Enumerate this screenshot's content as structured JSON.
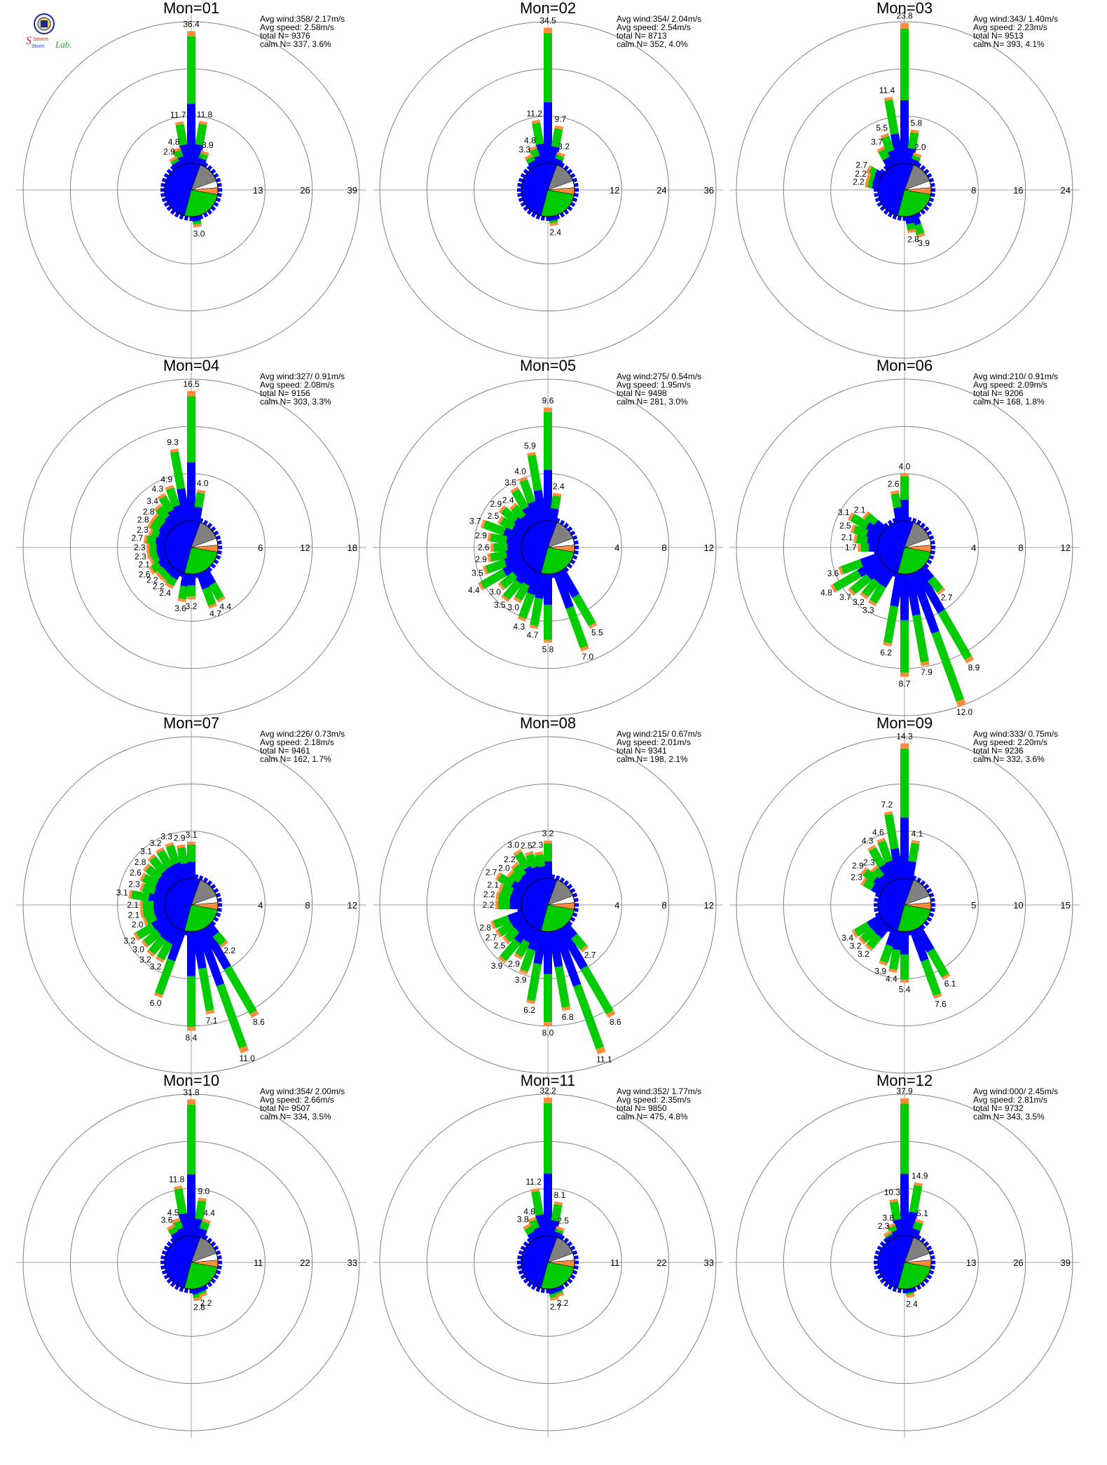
{
  "logo": {
    "text_top": "Severe",
    "text_bottom": "Storm",
    "text_lab": "Lab."
  },
  "colors": {
    "speed_low": "#0000ff",
    "speed_mid": "#00cc00",
    "speed_high": "#ff8c3c",
    "speed_max": "#ff0000",
    "calm": "#808080",
    "grid": "#808080",
    "axis": "#a0a0a0"
  },
  "chart_data": [
    {
      "type": "windrose",
      "title": "Mon=01",
      "avg_wind": "Avg wind:358/ 2.17m/s",
      "avg_speed": "Avg speed: 2.58m/s",
      "total": "total N=      9376",
      "calm": "calm N=    337,   3.6%",
      "rings": [
        13,
        26,
        39
      ],
      "petals": [
        {
          "dir": 0,
          "value": 36.4
        },
        {
          "dir": 350,
          "value": 11.7
        },
        {
          "dir": 10,
          "value": 11.8
        },
        {
          "dir": 340,
          "value": 4.8
        },
        {
          "dir": 20,
          "value": 3.9
        },
        {
          "dir": 330,
          "value": 2.9
        },
        {
          "dir": 170,
          "value": 3.0
        }
      ]
    },
    {
      "type": "windrose",
      "title": "Mon=02",
      "avg_wind": "Avg wind:354/ 2.04m/s",
      "avg_speed": "Avg speed: 2.54m/s",
      "total": "total N=      8713",
      "calm": "calm N=    352,   4.0%",
      "rings": [
        12,
        24,
        36
      ],
      "petals": [
        {
          "dir": 0,
          "value": 34.5
        },
        {
          "dir": 350,
          "value": 11.2
        },
        {
          "dir": 10,
          "value": 9.7
        },
        {
          "dir": 340,
          "value": 4.8
        },
        {
          "dir": 330,
          "value": 3.3
        },
        {
          "dir": 20,
          "value": 3.2
        },
        {
          "dir": 170,
          "value": 2.4
        }
      ]
    },
    {
      "type": "windrose",
      "title": "Mon=03",
      "avg_wind": "Avg wind:343/ 1.40m/s",
      "avg_speed": "Avg speed: 2.23m/s",
      "total": "total N=      9513",
      "calm": "calm N=    393,   4.1%",
      "rings": [
        8,
        16,
        24
      ],
      "petals": [
        {
          "dir": 0,
          "value": 23.8
        },
        {
          "dir": 350,
          "value": 11.4
        },
        {
          "dir": 10,
          "value": 5.8
        },
        {
          "dir": 340,
          "value": 5.5
        },
        {
          "dir": 330,
          "value": 3.7
        },
        {
          "dir": 20,
          "value": 2.0
        },
        {
          "dir": 300,
          "value": 2.7
        },
        {
          "dir": 290,
          "value": 2.2
        },
        {
          "dir": 280,
          "value": 2.2
        },
        {
          "dir": 160,
          "value": 3.9
        },
        {
          "dir": 170,
          "value": 2.8
        }
      ]
    },
    {
      "type": "windrose",
      "title": "Mon=04",
      "avg_wind": "Avg wind:327/ 0.91m/s",
      "avg_speed": "Avg speed: 2.08m/s",
      "total": "total N=      9156",
      "calm": "calm N=    303,   3.3%",
      "rings": [
        6,
        12,
        18
      ],
      "petals": [
        {
          "dir": 0,
          "value": 16.5
        },
        {
          "dir": 350,
          "value": 9.3
        },
        {
          "dir": 10,
          "value": 4.0
        },
        {
          "dir": 340,
          "value": 4.9
        },
        {
          "dir": 330,
          "value": 4.3
        },
        {
          "dir": 320,
          "value": 3.4
        },
        {
          "dir": 310,
          "value": 2.8
        },
        {
          "dir": 300,
          "value": 2.8
        },
        {
          "dir": 290,
          "value": 2.3
        },
        {
          "dir": 280,
          "value": 2.7
        },
        {
          "dir": 270,
          "value": 2.3
        },
        {
          "dir": 260,
          "value": 2.3
        },
        {
          "dir": 250,
          "value": 2.1
        },
        {
          "dir": 240,
          "value": 2.6
        },
        {
          "dir": 230,
          "value": 2.2
        },
        {
          "dir": 220,
          "value": 2.2
        },
        {
          "dir": 210,
          "value": 2.4
        },
        {
          "dir": 190,
          "value": 3.6
        },
        {
          "dir": 180,
          "value": 3.2
        },
        {
          "dir": 160,
          "value": 4.7
        },
        {
          "dir": 150,
          "value": 4.4
        }
      ]
    },
    {
      "type": "windrose",
      "title": "Mon=05",
      "avg_wind": "Avg wind:275/ 0.54m/s",
      "avg_speed": "Avg speed: 1.95m/s",
      "total": "total N=      9498",
      "calm": "calm N=    281,   3.0%",
      "rings": [
        4,
        8,
        12
      ],
      "petals": [
        {
          "dir": 0,
          "value": 9.6
        },
        {
          "dir": 350,
          "value": 5.9
        },
        {
          "dir": 340,
          "value": 4.0
        },
        {
          "dir": 330,
          "value": 3.5
        },
        {
          "dir": 10,
          "value": 2.4
        },
        {
          "dir": 320,
          "value": 2.4
        },
        {
          "dir": 310,
          "value": 2.9
        },
        {
          "dir": 300,
          "value": 2.5
        },
        {
          "dir": 290,
          "value": 3.7
        },
        {
          "dir": 280,
          "value": 2.9
        },
        {
          "dir": 270,
          "value": 2.6
        },
        {
          "dir": 260,
          "value": 2.9
        },
        {
          "dir": 250,
          "value": 3.5
        },
        {
          "dir": 240,
          "value": 4.4
        },
        {
          "dir": 230,
          "value": 3.0
        },
        {
          "dir": 220,
          "value": 3.5
        },
        {
          "dir": 210,
          "value": 3.0
        },
        {
          "dir": 200,
          "value": 4.3
        },
        {
          "dir": 190,
          "value": 4.7
        },
        {
          "dir": 180,
          "value": 5.8
        },
        {
          "dir": 160,
          "value": 7.0
        },
        {
          "dir": 150,
          "value": 5.5
        }
      ]
    },
    {
      "type": "windrose",
      "title": "Mon=06",
      "avg_wind": "Avg wind:210/ 0.91m/s",
      "avg_speed": "Avg speed: 2.09m/s",
      "total": "total N=      9206",
      "calm": "calm N=    168,   1.8%",
      "rings": [
        4,
        8,
        12
      ],
      "petals": [
        {
          "dir": 0,
          "value": 4.0
        },
        {
          "dir": 350,
          "value": 2.6
        },
        {
          "dir": 310,
          "value": 2.1
        },
        {
          "dir": 300,
          "value": 3.1
        },
        {
          "dir": 290,
          "value": 2.5
        },
        {
          "dir": 280,
          "value": 2.1
        },
        {
          "dir": 270,
          "value": 1.7
        },
        {
          "dir": 250,
          "value": 3.6
        },
        {
          "dir": 240,
          "value": 4.8
        },
        {
          "dir": 230,
          "value": 3.7
        },
        {
          "dir": 220,
          "value": 3.2
        },
        {
          "dir": 210,
          "value": 3.3
        },
        {
          "dir": 190,
          "value": 6.2
        },
        {
          "dir": 180,
          "value": 8.7
        },
        {
          "dir": 170,
          "value": 7.9
        },
        {
          "dir": 160,
          "value": 12.0
        },
        {
          "dir": 150,
          "value": 8.9
        },
        {
          "dir": 140,
          "value": 2.7
        }
      ]
    },
    {
      "type": "windrose",
      "title": "Mon=07",
      "avg_wind": "Avg wind:226/ 0.73m/s",
      "avg_speed": "Avg speed: 2.18m/s",
      "total": "total N=      9461",
      "calm": "calm N=    162,   1.7%",
      "rings": [
        4,
        8,
        12
      ],
      "petals": [
        {
          "dir": 0,
          "value": 3.1
        },
        {
          "dir": 350,
          "value": 2.9
        },
        {
          "dir": 340,
          "value": 3.3
        },
        {
          "dir": 330,
          "value": 3.2
        },
        {
          "dir": 320,
          "value": 3.1
        },
        {
          "dir": 310,
          "value": 2.8
        },
        {
          "dir": 300,
          "value": 2.6
        },
        {
          "dir": 290,
          "value": 2.3
        },
        {
          "dir": 280,
          "value": 3.1
        },
        {
          "dir": 270,
          "value": 2.1
        },
        {
          "dir": 260,
          "value": 2.1
        },
        {
          "dir": 250,
          "value": 2.0
        },
        {
          "dir": 240,
          "value": 3.2
        },
        {
          "dir": 230,
          "value": 3.0
        },
        {
          "dir": 220,
          "value": 3.2
        },
        {
          "dir": 210,
          "value": 3.2
        },
        {
          "dir": 200,
          "value": 6.0
        },
        {
          "dir": 180,
          "value": 8.4
        },
        {
          "dir": 170,
          "value": 7.1
        },
        {
          "dir": 160,
          "value": 11.0
        },
        {
          "dir": 150,
          "value": 8.6
        },
        {
          "dir": 140,
          "value": 2.2
        }
      ]
    },
    {
      "type": "windrose",
      "title": "Mon=08",
      "avg_wind": "Avg wind:215/ 0.67m/s",
      "avg_speed": "Avg speed: 2.01m/s",
      "total": "total N=      9341",
      "calm": "calm N=    198,   2.1%",
      "rings": [
        4,
        8,
        12
      ],
      "petals": [
        {
          "dir": 0,
          "value": 3.2
        },
        {
          "dir": 350,
          "value": 2.3
        },
        {
          "dir": 340,
          "value": 2.5
        },
        {
          "dir": 330,
          "value": 3.0
        },
        {
          "dir": 320,
          "value": 2.2
        },
        {
          "dir": 310,
          "value": 2.0
        },
        {
          "dir": 300,
          "value": 2.7
        },
        {
          "dir": 290,
          "value": 2.1
        },
        {
          "dir": 280,
          "value": 2.2
        },
        {
          "dir": 270,
          "value": 2.2
        },
        {
          "dir": 250,
          "value": 2.8
        },
        {
          "dir": 240,
          "value": 2.7
        },
        {
          "dir": 230,
          "value": 2.5
        },
        {
          "dir": 220,
          "value": 3.9
        },
        {
          "dir": 210,
          "value": 2.9
        },
        {
          "dir": 200,
          "value": 3.9
        },
        {
          "dir": 190,
          "value": 6.2
        },
        {
          "dir": 180,
          "value": 8.0
        },
        {
          "dir": 170,
          "value": 6.8
        },
        {
          "dir": 160,
          "value": 11.1
        },
        {
          "dir": 150,
          "value": 8.6
        },
        {
          "dir": 140,
          "value": 2.7
        }
      ]
    },
    {
      "type": "windrose",
      "title": "Mon=09",
      "avg_wind": "Avg wind:333/ 0.75m/s",
      "avg_speed": "Avg speed: 2.20m/s",
      "total": "total N=      9236",
      "calm": "calm N=    332,   3.6%",
      "rings": [
        5,
        10,
        15
      ],
      "petals": [
        {
          "dir": 0,
          "value": 14.3
        },
        {
          "dir": 350,
          "value": 7.2
        },
        {
          "dir": 340,
          "value": 4.6
        },
        {
          "dir": 330,
          "value": 4.3
        },
        {
          "dir": 10,
          "value": 4.1
        },
        {
          "dir": 320,
          "value": 2.3
        },
        {
          "dir": 310,
          "value": 2.9
        },
        {
          "dir": 300,
          "value": 2.3
        },
        {
          "dir": 240,
          "value": 3.4
        },
        {
          "dir": 230,
          "value": 3.2
        },
        {
          "dir": 220,
          "value": 3.2
        },
        {
          "dir": 200,
          "value": 3.9
        },
        {
          "dir": 190,
          "value": 4.4
        },
        {
          "dir": 180,
          "value": 5.4
        },
        {
          "dir": 160,
          "value": 7.6
        },
        {
          "dir": 150,
          "value": 6.1
        }
      ]
    },
    {
      "type": "windrose",
      "title": "Mon=10",
      "avg_wind": "Avg wind:354/ 2.00m/s",
      "avg_speed": "Avg speed: 2.66m/s",
      "total": "total N=      9507",
      "calm": "calm N=    334,   3.5%",
      "rings": [
        11,
        22,
        33
      ],
      "petals": [
        {
          "dir": 0,
          "value": 31.8
        },
        {
          "dir": 350,
          "value": 11.8
        },
        {
          "dir": 10,
          "value": 9.0
        },
        {
          "dir": 340,
          "value": 4.5
        },
        {
          "dir": 20,
          "value": 4.4
        },
        {
          "dir": 330,
          "value": 3.6
        },
        {
          "dir": 170,
          "value": 2.8
        },
        {
          "dir": 160,
          "value": 2.2
        }
      ]
    },
    {
      "type": "windrose",
      "title": "Mon=11",
      "avg_wind": "Avg wind:352/ 1.77m/s",
      "avg_speed": "Avg speed: 2.35m/s",
      "total": "total N=      9850",
      "calm": "calm N=    475,   4.8%",
      "rings": [
        11,
        22,
        33
      ],
      "petals": [
        {
          "dir": 0,
          "value": 32.2
        },
        {
          "dir": 350,
          "value": 11.2
        },
        {
          "dir": 10,
          "value": 8.1
        },
        {
          "dir": 340,
          "value": 4.8
        },
        {
          "dir": 330,
          "value": 3.8
        },
        {
          "dir": 20,
          "value": 2.5
        },
        {
          "dir": 170,
          "value": 2.7
        },
        {
          "dir": 160,
          "value": 2.2
        }
      ]
    },
    {
      "type": "windrose",
      "title": "Mon=12",
      "avg_wind": "Avg wind:000/ 2.45m/s",
      "avg_speed": "Avg speed: 2.81m/s",
      "total": "total N=      9732",
      "calm": "calm N=    343,   3.5%",
      "rings": [
        13,
        26,
        39
      ],
      "petals": [
        {
          "dir": 0,
          "value": 37.9
        },
        {
          "dir": 10,
          "value": 14.9
        },
        {
          "dir": 350,
          "value": 10.3
        },
        {
          "dir": 20,
          "value": 5.1
        },
        {
          "dir": 340,
          "value": 3.8
        },
        {
          "dir": 330,
          "value": 2.3
        },
        {
          "dir": 170,
          "value": 2.4
        }
      ]
    }
  ]
}
